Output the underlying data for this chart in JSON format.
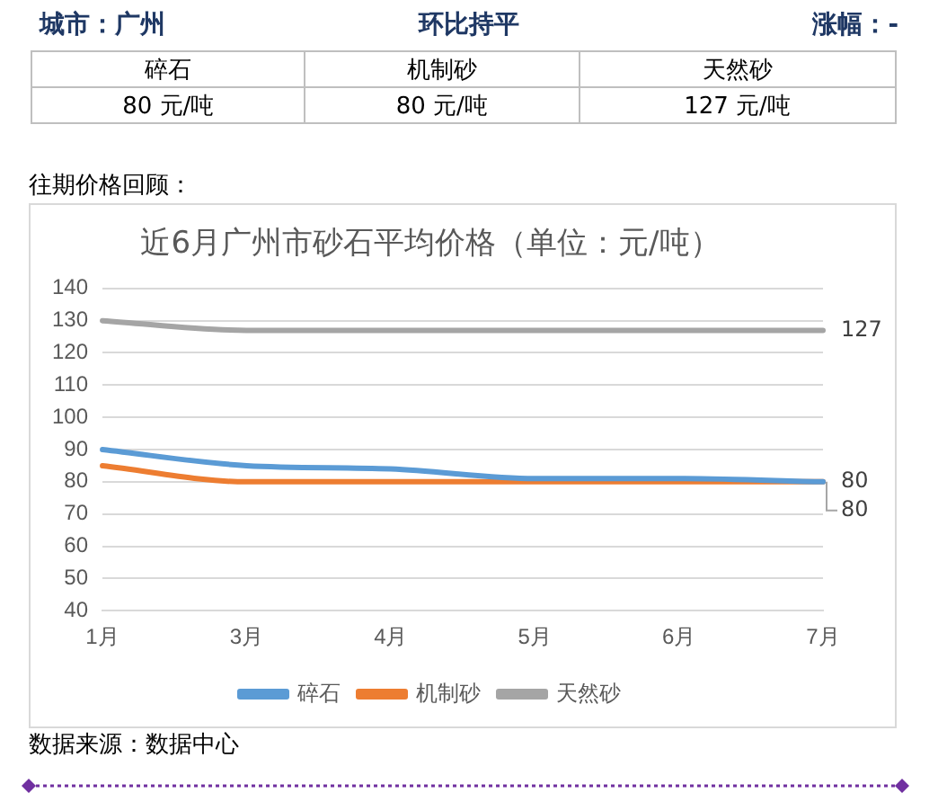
{
  "chart_data": {
    "type": "line",
    "title": "近6月广州市砂石平均价格（单位：元/吨）",
    "categories": [
      "1月",
      "3月",
      "4月",
      "5月",
      "6月",
      "7月"
    ],
    "series": [
      {
        "name": "碎石",
        "color": "#5b9bd5",
        "values": [
          90,
          85,
          84,
          81,
          81,
          80
        ],
        "value_labels": [
          null,
          null,
          null,
          null,
          null,
          "80"
        ]
      },
      {
        "name": "机制砂",
        "color": "#ed7d31",
        "values": [
          85,
          80,
          80,
          80,
          80,
          80
        ],
        "value_labels": [
          null,
          null,
          null,
          null,
          null,
          "80"
        ]
      },
      {
        "name": "天然砂",
        "color": "#a5a5a5",
        "values": [
          130,
          127,
          127,
          127,
          127,
          127
        ],
        "value_labels": [
          null,
          null,
          null,
          null,
          null,
          "127"
        ]
      }
    ],
    "ylim": [
      40,
      140
    ],
    "yticks": [
      40,
      50,
      60,
      70,
      80,
      90,
      100,
      110,
      120,
      130,
      140
    ],
    "grid": "y",
    "legend": "bottom",
    "marker": "none",
    "line_style": "solid",
    "annotations": [
      "城市：广州",
      "环比持平",
      "涨幅：-",
      "碎石",
      "机制砂",
      "天然砂",
      "80 元/吨",
      "80 元/吨",
      "127 元/吨",
      "往期价格回顾：",
      "数据来源：数据中心"
    ]
  }
}
